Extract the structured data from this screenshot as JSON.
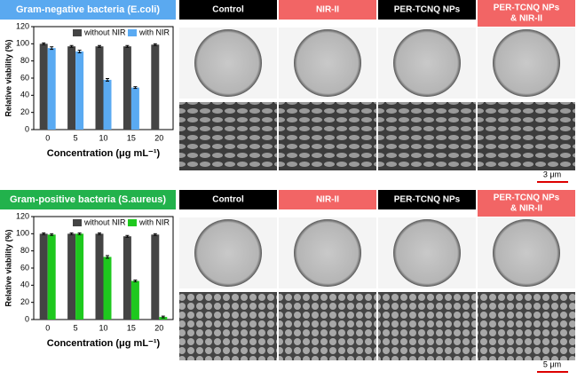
{
  "chart_data": [
    {
      "type": "bar",
      "title": "Gram-negative bacteria (E.coli)",
      "title_background": "#5aa9f0",
      "ylabel": "Relative viability (%)",
      "xlabel": "Concentration (μg mL⁻¹)",
      "categories": [
        "0",
        "5",
        "10",
        "15",
        "20"
      ],
      "series": [
        {
          "name": "without NIR",
          "color": "#444444",
          "values": [
            100,
            97,
            97,
            97,
            99
          ],
          "errors": [
            1,
            1,
            1,
            1,
            1
          ]
        },
        {
          "name": "with NIR",
          "color": "#5aaaf2",
          "values": [
            95,
            91,
            58,
            49,
            null
          ],
          "errors": [
            1.5,
            1.5,
            1.5,
            1,
            null
          ]
        }
      ],
      "ylim": [
        0,
        120
      ],
      "yticks": [
        0,
        20,
        40,
        60,
        80,
        100,
        120
      ],
      "legend": "top"
    },
    {
      "type": "bar",
      "title": "Gram-positive bacteria (S.aureus)",
      "title_background": "#22b24c",
      "ylabel": "Relative viability (%)",
      "xlabel": "Concentration (μg mL⁻¹)",
      "categories": [
        "0",
        "5",
        "10",
        "15",
        "20"
      ],
      "series": [
        {
          "name": "without NIR",
          "color": "#444444",
          "values": [
            100,
            100,
            100,
            97,
            99
          ],
          "errors": [
            1,
            1,
            1,
            1,
            1
          ]
        },
        {
          "name": "with NIR",
          "color": "#1ec81e",
          "values": [
            99,
            100,
            73,
            45,
            3
          ],
          "errors": [
            1,
            1,
            1.5,
            1,
            1
          ]
        }
      ],
      "ylim": [
        0,
        120
      ],
      "yticks": [
        0,
        20,
        40,
        60,
        80,
        100,
        120
      ],
      "legend": "top"
    }
  ],
  "image_panels": [
    {
      "columns": [
        [
          "Control"
        ],
        [
          "NIR-II"
        ],
        [
          "PER-TCNQ NPs"
        ],
        [
          "PER-TCNQ NPs",
          "& NIR-II"
        ]
      ],
      "scale_bar": "3 μm"
    },
    {
      "columns": [
        [
          "Control"
        ],
        [
          "NIR-II"
        ],
        [
          "PER-TCNQ NPs"
        ],
        [
          "PER-TCNQ NPs",
          "& NIR-II"
        ]
      ],
      "scale_bar": "5 μm"
    }
  ]
}
